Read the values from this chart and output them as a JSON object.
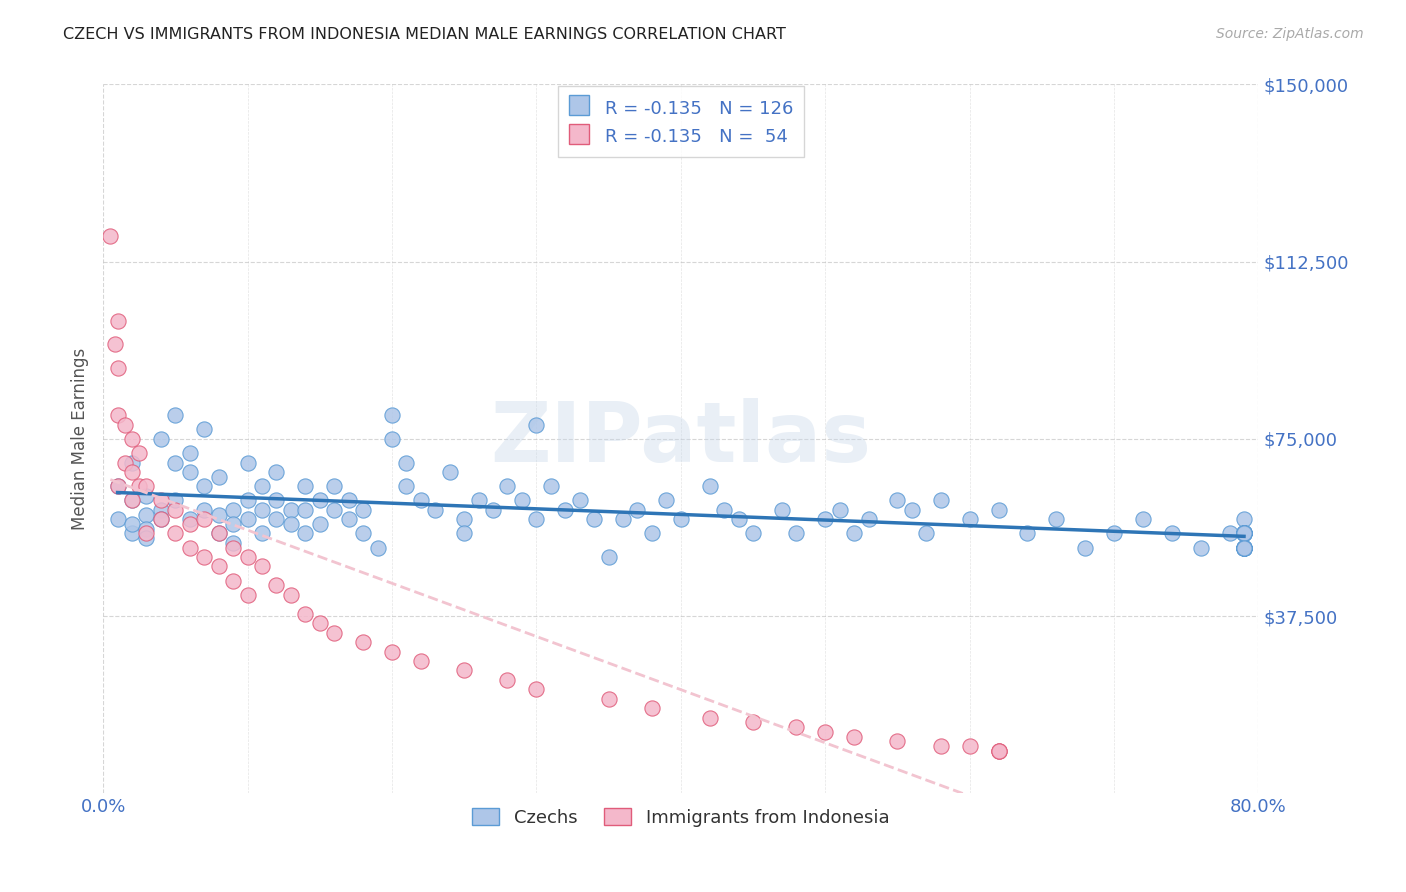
{
  "title": "CZECH VS IMMIGRANTS FROM INDONESIA MEDIAN MALE EARNINGS CORRELATION CHART",
  "source": "Source: ZipAtlas.com",
  "ylabel": "Median Male Earnings",
  "xmin": 0.0,
  "xmax": 0.8,
  "ymin": 0,
  "ymax": 150000,
  "ytick_positions": [
    37500,
    75000,
    112500,
    150000
  ],
  "ytick_labels": [
    "$37,500",
    "$75,000",
    "$112,500",
    "$150,000"
  ],
  "czech_color": "#aec6e8",
  "czech_edge_color": "#5b9bd5",
  "indonesia_color": "#f4b8cb",
  "indonesia_edge_color": "#e05c7a",
  "czech_line_color": "#2e75b6",
  "indonesia_line_color": "#f2c4d0",
  "czech_R": -0.135,
  "czech_N": 126,
  "indonesia_R": -0.135,
  "indonesia_N": 54,
  "background_color": "#ffffff",
  "grid_color": "#bbbbbb",
  "watermark": "ZIPatlas",
  "watermark_color": "#c8d8ea",
  "axis_label_color": "#4472c4",
  "czech_scatter_x": [
    0.01,
    0.01,
    0.02,
    0.02,
    0.02,
    0.02,
    0.03,
    0.03,
    0.03,
    0.03,
    0.04,
    0.04,
    0.04,
    0.05,
    0.05,
    0.05,
    0.06,
    0.06,
    0.06,
    0.07,
    0.07,
    0.07,
    0.08,
    0.08,
    0.08,
    0.09,
    0.09,
    0.09,
    0.1,
    0.1,
    0.1,
    0.11,
    0.11,
    0.11,
    0.12,
    0.12,
    0.12,
    0.13,
    0.13,
    0.14,
    0.14,
    0.14,
    0.15,
    0.15,
    0.16,
    0.16,
    0.17,
    0.17,
    0.18,
    0.18,
    0.19,
    0.2,
    0.2,
    0.21,
    0.21,
    0.22,
    0.23,
    0.24,
    0.25,
    0.25,
    0.26,
    0.27,
    0.28,
    0.29,
    0.3,
    0.3,
    0.31,
    0.32,
    0.33,
    0.34,
    0.35,
    0.36,
    0.37,
    0.38,
    0.39,
    0.4,
    0.42,
    0.43,
    0.44,
    0.45,
    0.47,
    0.48,
    0.5,
    0.51,
    0.52,
    0.53,
    0.55,
    0.56,
    0.57,
    0.58,
    0.6,
    0.62,
    0.64,
    0.66,
    0.68,
    0.7,
    0.72,
    0.74,
    0.76,
    0.78,
    0.79,
    0.79,
    0.79,
    0.79,
    0.79,
    0.79,
    0.79,
    0.79,
    0.79,
    0.79,
    0.79,
    0.79,
    0.79,
    0.79,
    0.79,
    0.79,
    0.79,
    0.79,
    0.79,
    0.79,
    0.79,
    0.79,
    0.79,
    0.79,
    0.79,
    0.79
  ],
  "czech_scatter_y": [
    58000,
    65000,
    55000,
    62000,
    70000,
    57000,
    59000,
    63000,
    56000,
    54000,
    75000,
    60000,
    58000,
    80000,
    70000,
    62000,
    68000,
    72000,
    58000,
    77000,
    65000,
    60000,
    67000,
    59000,
    55000,
    60000,
    57000,
    53000,
    70000,
    62000,
    58000,
    65000,
    60000,
    55000,
    68000,
    62000,
    58000,
    60000,
    57000,
    65000,
    60000,
    55000,
    62000,
    57000,
    65000,
    60000,
    62000,
    58000,
    60000,
    55000,
    52000,
    80000,
    75000,
    65000,
    70000,
    62000,
    60000,
    68000,
    58000,
    55000,
    62000,
    60000,
    65000,
    62000,
    78000,
    58000,
    65000,
    60000,
    62000,
    58000,
    50000,
    58000,
    60000,
    55000,
    62000,
    58000,
    65000,
    60000,
    58000,
    55000,
    60000,
    55000,
    58000,
    60000,
    55000,
    58000,
    62000,
    60000,
    55000,
    62000,
    58000,
    60000,
    55000,
    58000,
    52000,
    55000,
    58000,
    55000,
    52000,
    55000,
    58000,
    55000,
    52000,
    55000,
    55000,
    52000,
    55000,
    52000,
    55000,
    52000,
    55000,
    52000,
    55000,
    52000,
    55000,
    52000,
    55000,
    52000,
    55000,
    52000,
    55000,
    52000,
    55000,
    52000,
    55000,
    52000
  ],
  "indonesia_scatter_x": [
    0.005,
    0.008,
    0.01,
    0.01,
    0.01,
    0.01,
    0.015,
    0.015,
    0.02,
    0.02,
    0.02,
    0.025,
    0.025,
    0.03,
    0.03,
    0.04,
    0.04,
    0.05,
    0.05,
    0.06,
    0.06,
    0.07,
    0.07,
    0.08,
    0.08,
    0.09,
    0.09,
    0.1,
    0.1,
    0.11,
    0.12,
    0.13,
    0.14,
    0.15,
    0.16,
    0.18,
    0.2,
    0.22,
    0.25,
    0.28,
    0.3,
    0.35,
    0.38,
    0.42,
    0.45,
    0.48,
    0.5,
    0.52,
    0.55,
    0.58,
    0.6,
    0.62,
    0.62,
    0.62
  ],
  "indonesia_scatter_y": [
    118000,
    95000,
    100000,
    90000,
    80000,
    65000,
    78000,
    70000,
    75000,
    68000,
    62000,
    72000,
    65000,
    65000,
    55000,
    62000,
    58000,
    60000,
    55000,
    57000,
    52000,
    58000,
    50000,
    55000,
    48000,
    52000,
    45000,
    50000,
    42000,
    48000,
    44000,
    42000,
    38000,
    36000,
    34000,
    32000,
    30000,
    28000,
    26000,
    24000,
    22000,
    20000,
    18000,
    16000,
    15000,
    14000,
    13000,
    12000,
    11000,
    10000,
    10000,
    9000,
    9000,
    9000
  ]
}
